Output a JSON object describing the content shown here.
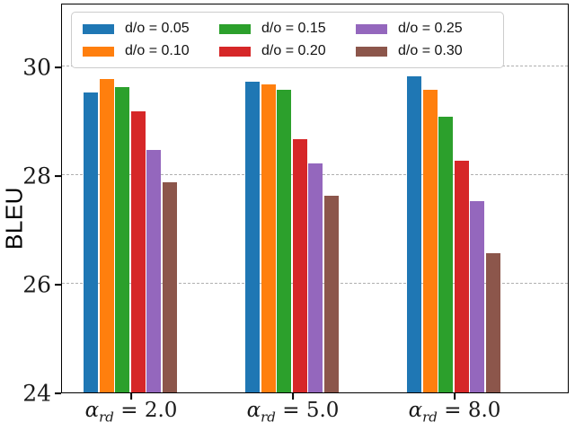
{
  "chart_data": {
    "type": "bar",
    "title": "",
    "xlabel": "",
    "ylabel": "BLEU",
    "ylim": [
      24,
      31.2
    ],
    "yticks": [
      24,
      26,
      28,
      30
    ],
    "grid": {
      "axis": "y",
      "style": "dashed",
      "color": "#b0b0b0"
    },
    "legend": {
      "position": "upper left",
      "columns": 3
    },
    "categories": [
      {
        "text": "α_rd = 2.0",
        "sym": "α",
        "sub": "rd",
        "eq": "= 2.0"
      },
      {
        "text": "α_rd = 5.0",
        "sym": "α",
        "sub": "rd",
        "eq": "= 5.0"
      },
      {
        "text": "α_rd = 8.0",
        "sym": "α",
        "sub": "rd",
        "eq": "= 8.0"
      }
    ],
    "series": [
      {
        "name": "d/o = 0.05",
        "color": "#1f77b4",
        "values": [
          29.55,
          29.75,
          29.85
        ]
      },
      {
        "name": "d/o = 0.10",
        "color": "#ff7f0e",
        "values": [
          29.8,
          29.7,
          29.6
        ]
      },
      {
        "name": "d/o = 0.15",
        "color": "#2ca02c",
        "values": [
          29.65,
          29.6,
          29.1
        ]
      },
      {
        "name": "d/o = 0.20",
        "color": "#d62728",
        "values": [
          29.2,
          28.7,
          28.3
        ]
      },
      {
        "name": "d/o = 0.25",
        "color": "#9467bd",
        "values": [
          28.5,
          28.25,
          27.55
        ]
      },
      {
        "name": "d/o = 0.30",
        "color": "#8c564b",
        "values": [
          27.9,
          27.65,
          26.6
        ]
      }
    ]
  }
}
